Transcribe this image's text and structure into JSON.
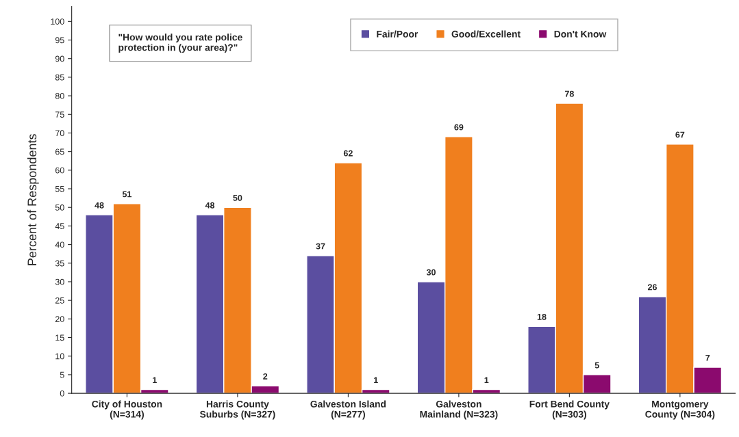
{
  "chart_data": {
    "type": "bar",
    "ylabel": "Percent of Respondents",
    "categories": [
      "City of Houston\n(N=314)",
      "Harris County\nSuburbs (N=327)",
      "Galveston Island\n(N=277)",
      "Galveston\nMainland (N=323)",
      "Fort Bend County\n(N=303)",
      "Montgomery\nCounty (N=304)"
    ],
    "series": [
      {
        "name": "Fair/Poor",
        "color": "#5b4ea0",
        "values": [
          48,
          48,
          37,
          30,
          18,
          26
        ]
      },
      {
        "name": "Good/Excellent",
        "color": "#f07f1e",
        "values": [
          51,
          50,
          62,
          69,
          78,
          67
        ]
      },
      {
        "name": "Don't Know",
        "color": "#8b0a6e",
        "values": [
          1,
          2,
          1,
          1,
          5,
          7
        ]
      }
    ],
    "ylim": [
      0,
      104
    ],
    "yticks": [
      0,
      5,
      10,
      15,
      20,
      25,
      30,
      35,
      40,
      45,
      50,
      55,
      60,
      65,
      70,
      75,
      80,
      85,
      90,
      95,
      100
    ],
    "annotations": [
      "\"How would you rate police\nprotection in (your area)?\""
    ],
    "data_labels": true,
    "legend": "top right",
    "grid": false
  }
}
